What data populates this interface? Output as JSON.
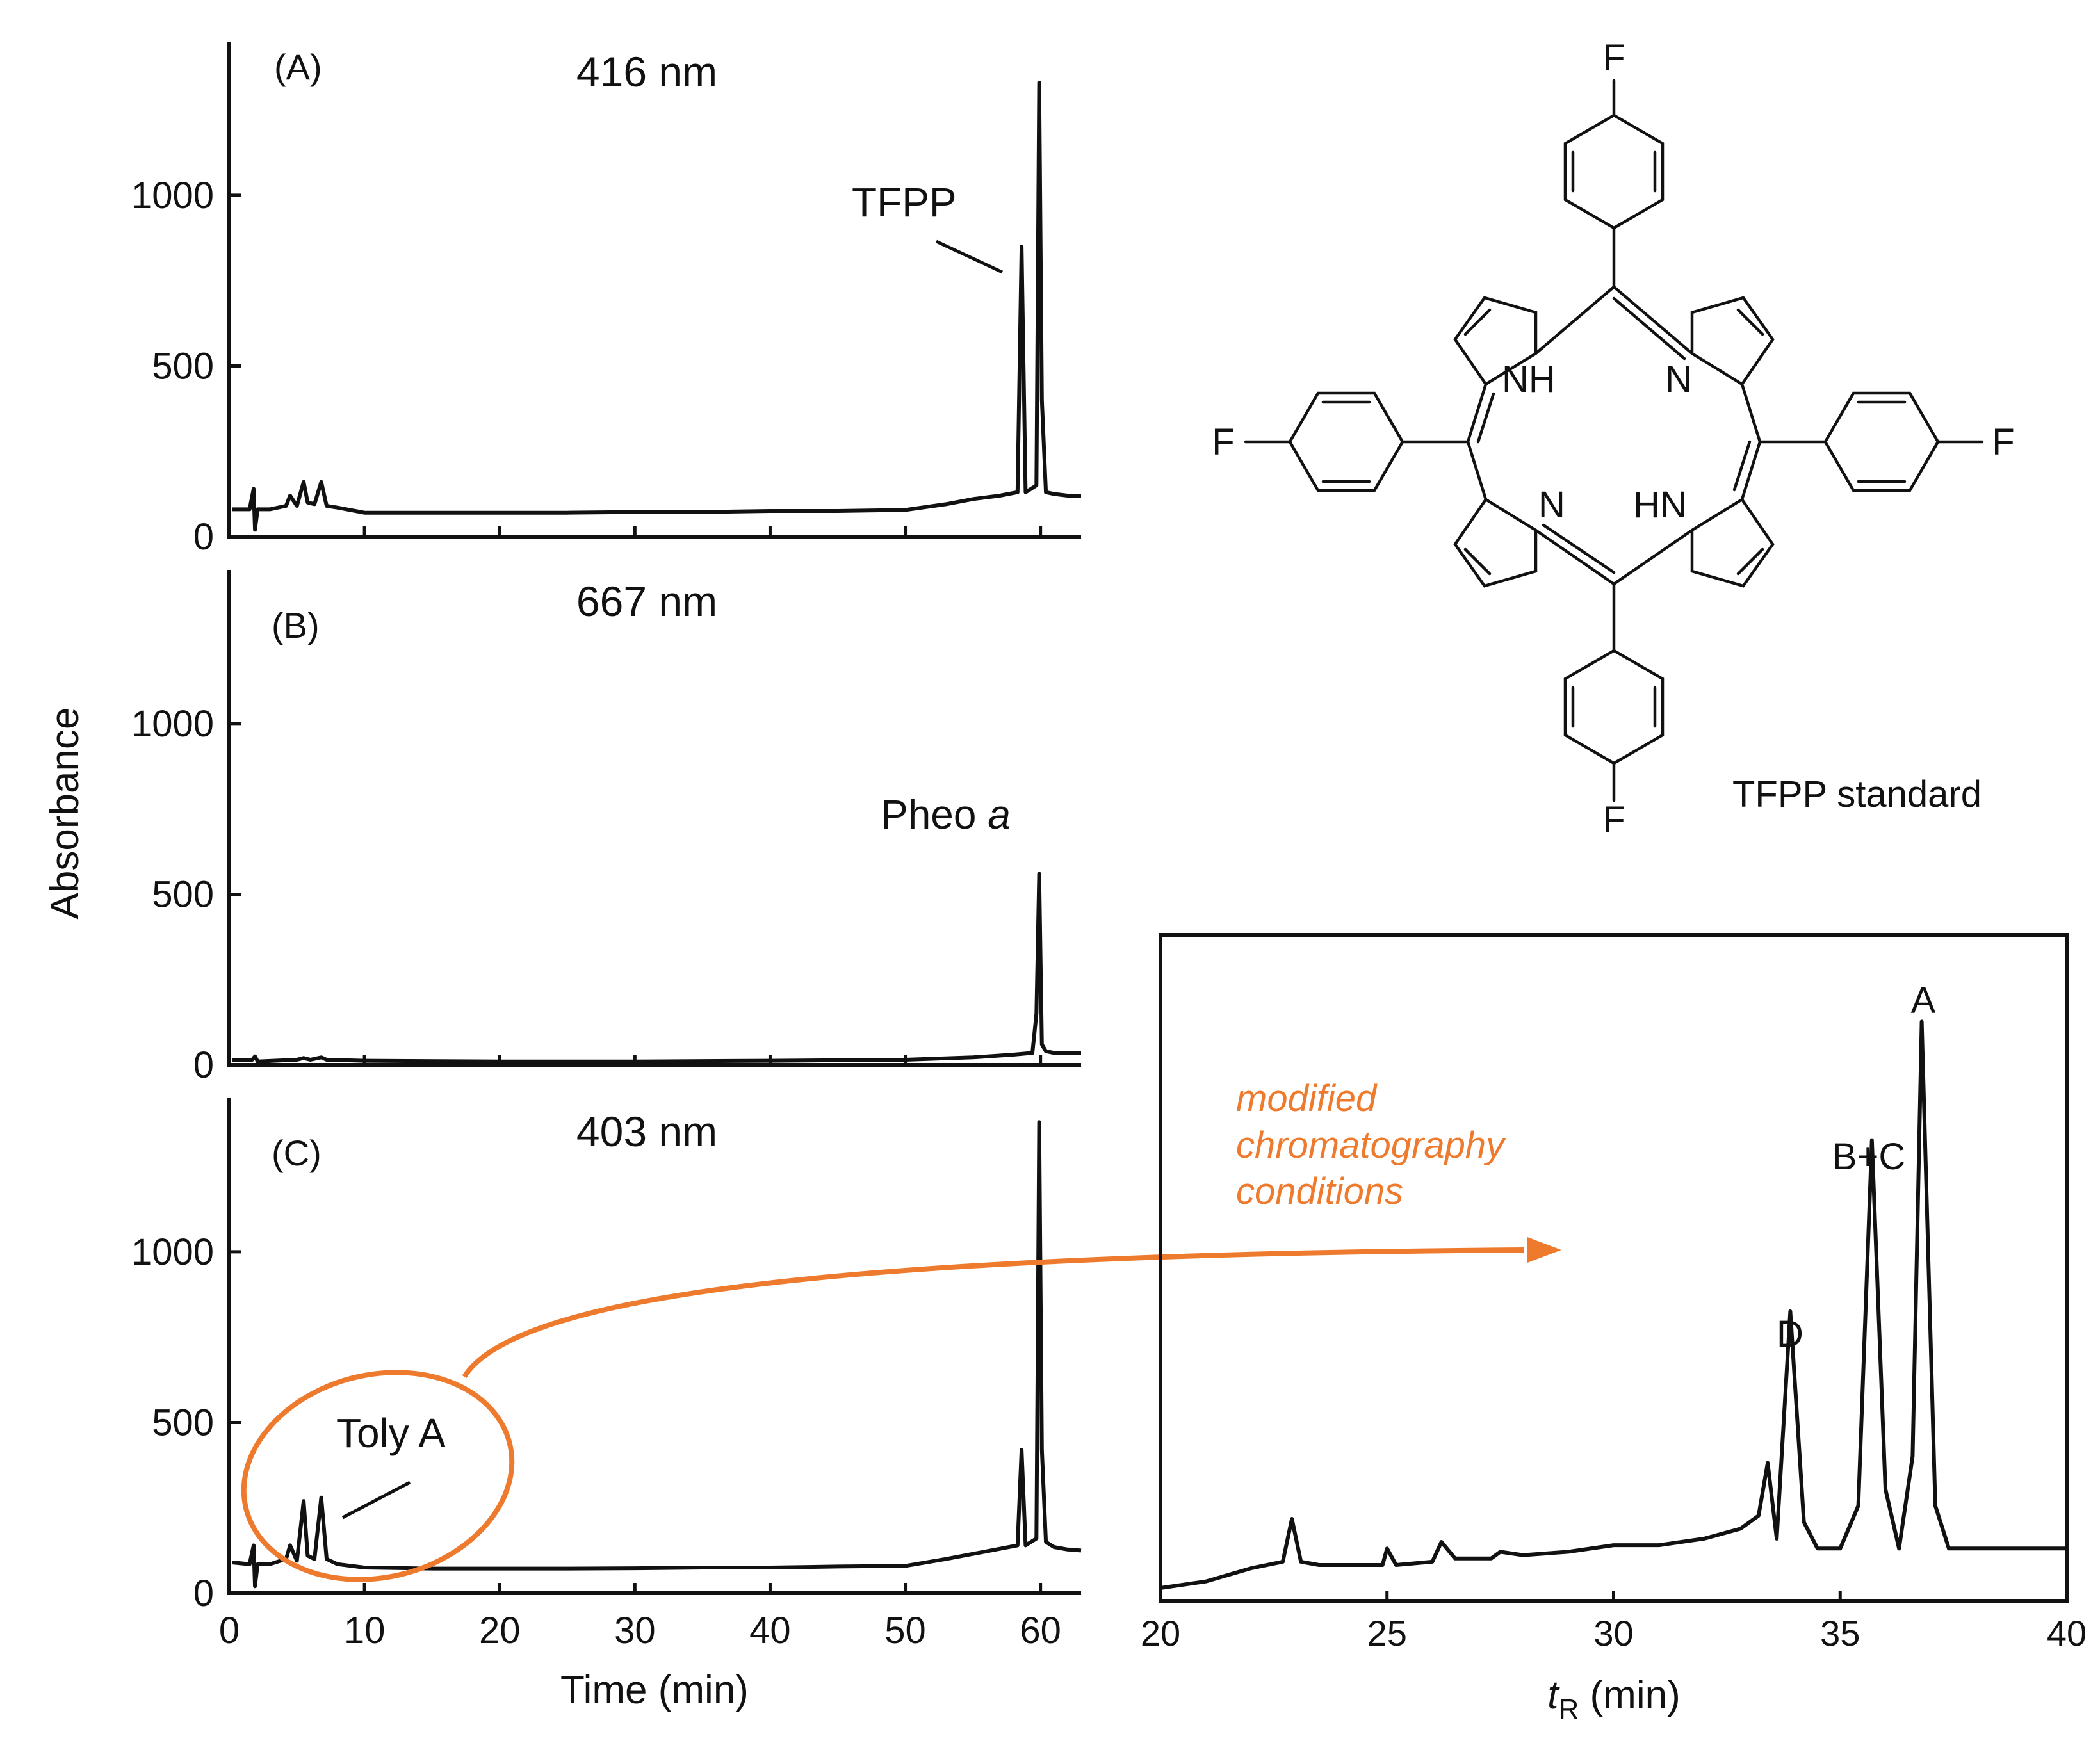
{
  "chart_data": [
    {
      "type": "line",
      "panel": "(A)",
      "wavelength": "416 nm",
      "ylabel": "Absorbance",
      "xlabel": "Time (min)",
      "xlim": [
        0,
        63
      ],
      "ylim": [
        0,
        1450
      ],
      "yticks": [
        0,
        500,
        1000
      ],
      "xticks": [
        0,
        10,
        20,
        30,
        40,
        50,
        60
      ],
      "annotations": [
        {
          "text": "TFPP",
          "x": 58.6,
          "y": 830
        }
      ],
      "x": [
        0.2,
        1.5,
        1.8,
        1.9,
        2.1,
        3,
        4.2,
        4.5,
        5.0,
        5.5,
        5.8,
        6.3,
        6.8,
        7.2,
        8,
        10,
        15,
        20,
        25,
        30,
        35,
        40,
        45,
        50,
        53,
        55,
        57,
        58.3,
        58.6,
        58.9,
        59.3,
        59.7,
        59.9,
        60.1,
        60.4,
        61,
        62,
        63
      ],
      "y": [
        80,
        80,
        140,
        20,
        80,
        80,
        90,
        120,
        90,
        160,
        100,
        95,
        160,
        90,
        85,
        70,
        70,
        70,
        70,
        72,
        72,
        75,
        75,
        78,
        95,
        110,
        120,
        130,
        850,
        130,
        140,
        150,
        1330,
        400,
        130,
        125,
        120,
        120
      ]
    },
    {
      "type": "line",
      "panel": "(B)",
      "wavelength": "667 nm",
      "ylabel": "Absorbance",
      "xlabel": "Time (min)",
      "xlim": [
        0,
        63
      ],
      "ylim": [
        0,
        1450
      ],
      "yticks": [
        0,
        500,
        1000
      ],
      "xticks": [
        0,
        10,
        20,
        30,
        40,
        50,
        60
      ],
      "annotations": [
        {
          "text": "Pheo a",
          "x": 59.6,
          "y": 620
        }
      ],
      "x": [
        0.2,
        1.7,
        1.9,
        2.1,
        5,
        5.5,
        6,
        6.8,
        7.2,
        10,
        20,
        30,
        40,
        50,
        55,
        58,
        59.4,
        59.7,
        59.9,
        60.1,
        60.4,
        61,
        63
      ],
      "y": [
        15,
        15,
        25,
        10,
        15,
        20,
        15,
        22,
        15,
        12,
        10,
        10,
        12,
        15,
        22,
        30,
        35,
        150,
        560,
        60,
        40,
        35,
        35
      ]
    },
    {
      "type": "line",
      "panel": "(C)",
      "wavelength": "403 nm",
      "ylabel": "Absorbance",
      "xlabel": "Time (min)",
      "xlim": [
        0,
        63
      ],
      "ylim": [
        0,
        1450
      ],
      "yticks": [
        0,
        500,
        1000
      ],
      "xticks": [
        0,
        10,
        20,
        30,
        40,
        50,
        60
      ],
      "annotations": [
        {
          "text": "Toly A",
          "x": 8.0,
          "y": 240
        }
      ],
      "x": [
        0.2,
        1.5,
        1.8,
        1.9,
        2.1,
        3,
        4.2,
        4.5,
        5.0,
        5.5,
        5.8,
        6.3,
        6.8,
        7.2,
        8,
        10,
        15,
        20,
        25,
        30,
        35,
        40,
        45,
        50,
        53,
        55,
        57,
        58.3,
        58.6,
        58.9,
        59.3,
        59.7,
        59.9,
        60.1,
        60.4,
        61,
        62,
        63
      ],
      "y": [
        90,
        85,
        140,
        20,
        85,
        85,
        100,
        140,
        95,
        270,
        110,
        100,
        280,
        100,
        85,
        75,
        72,
        72,
        72,
        73,
        75,
        75,
        78,
        80,
        100,
        115,
        130,
        140,
        420,
        140,
        150,
        160,
        1380,
        420,
        150,
        135,
        128,
        125
      ]
    },
    {
      "type": "line",
      "panel": "inset",
      "xlabel_main": "t",
      "xlabel_sub": "R",
      "xlabel_unit": " (min)",
      "xlim": [
        20,
        40
      ],
      "ylim": [
        0,
        1.1
      ],
      "xticks": [
        20,
        25,
        30,
        35,
        40
      ],
      "annotations": [
        {
          "text": "D",
          "x": 33.9,
          "y": 0.74
        },
        {
          "text": "B+C",
          "x": 35.7,
          "y": 1.2
        },
        {
          "text": "A",
          "x": 36.8,
          "y": 1.46
        }
      ],
      "x": [
        20,
        21,
        22,
        22.7,
        22.9,
        23.1,
        23.5,
        24,
        24.9,
        25.0,
        25.2,
        26.0,
        26.2,
        26.5,
        27.3,
        27.5,
        28,
        29,
        30,
        31,
        32,
        32.8,
        33.2,
        33.4,
        33.6,
        33.9,
        34.2,
        34.5,
        35.0,
        35.4,
        35.7,
        36.0,
        36.3,
        36.6,
        36.8,
        37.1,
        37.4,
        38,
        39,
        40
      ],
      "y": [
        0.0,
        0.02,
        0.06,
        0.08,
        0.21,
        0.08,
        0.07,
        0.07,
        0.07,
        0.12,
        0.07,
        0.08,
        0.14,
        0.09,
        0.09,
        0.11,
        0.1,
        0.11,
        0.13,
        0.13,
        0.15,
        0.18,
        0.22,
        0.38,
        0.15,
        0.84,
        0.2,
        0.12,
        0.12,
        0.25,
        1.36,
        0.3,
        0.12,
        0.4,
        1.72,
        0.25,
        0.12,
        0.12,
        0.12,
        0.12
      ]
    }
  ],
  "structure": {
    "fluorine": "F",
    "nh_left": "NH",
    "n_right": "N",
    "n_left": "N",
    "hn_right": "HN",
    "caption": "TFPP standard"
  },
  "annotation_text": {
    "line1": "modified",
    "line2": "chromatography",
    "line3": "conditions"
  },
  "colors": {
    "trace": "#111111",
    "accent": "#ee7a2e"
  }
}
